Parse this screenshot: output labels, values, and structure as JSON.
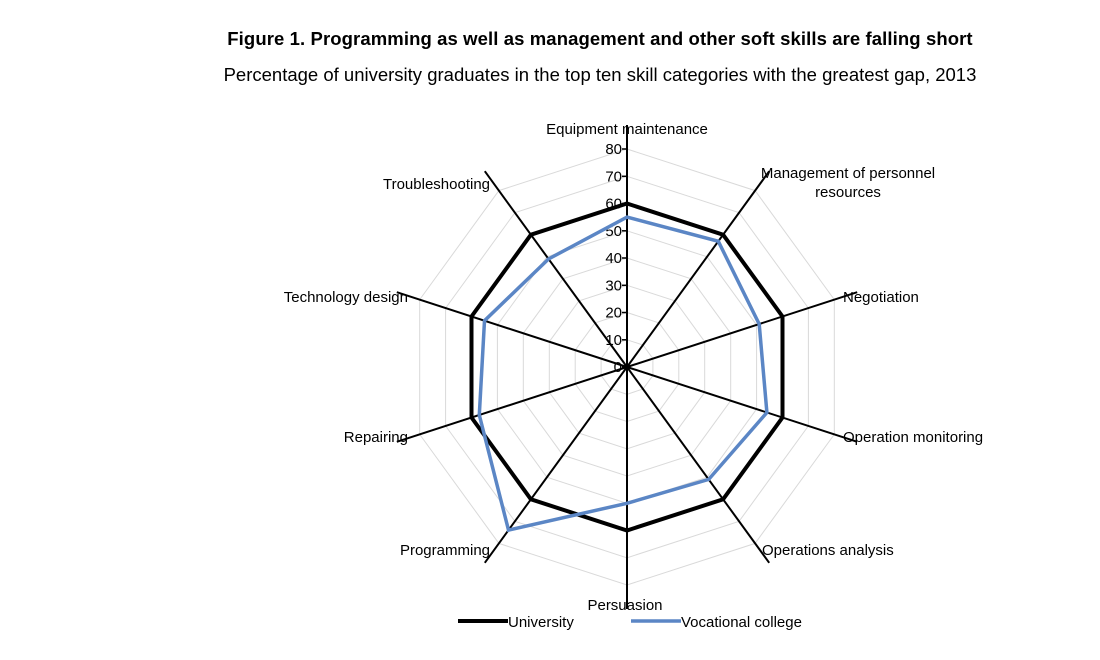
{
  "chart_data": {
    "type": "radar",
    "title": "Figure 1. Programming as well as management and other soft skills are falling short",
    "subtitle": "Percentage of university graduates in the top ten skill categories with the greatest gap, 2013",
    "categories": [
      "Equipment maintenance",
      "Management of personnel resources",
      "Negotiation",
      "Operation monitoring",
      "Operations analysis",
      "Persuasion",
      "Programming",
      "Repairing",
      "Technology design",
      "Troubleshooting"
    ],
    "category_label_lines": [
      [
        "Equipment maintenance"
      ],
      [
        "Management of personnel",
        "resources"
      ],
      [
        "Negotiation"
      ],
      [
        "Operation monitoring"
      ],
      [
        "Operations analysis"
      ],
      [
        "Persuasion"
      ],
      [
        "Programming"
      ],
      [
        "Repairing"
      ],
      [
        "Technology design"
      ],
      [
        "Troubleshooting"
      ]
    ],
    "rlim": [
      0,
      80
    ],
    "ticks": [
      0,
      10,
      20,
      30,
      40,
      50,
      60,
      70,
      80
    ],
    "series": [
      {
        "name": "University",
        "color": "#000000",
        "values": [
          60,
          60,
          60,
          60,
          60,
          60,
          60,
          60,
          60,
          60
        ]
      },
      {
        "name": "Vocational college",
        "color": "#5b86c5",
        "values": [
          55,
          57,
          51,
          54,
          51,
          50,
          74,
          57,
          55,
          49
        ]
      }
    ],
    "legend_position": "bottom",
    "grid": true
  }
}
